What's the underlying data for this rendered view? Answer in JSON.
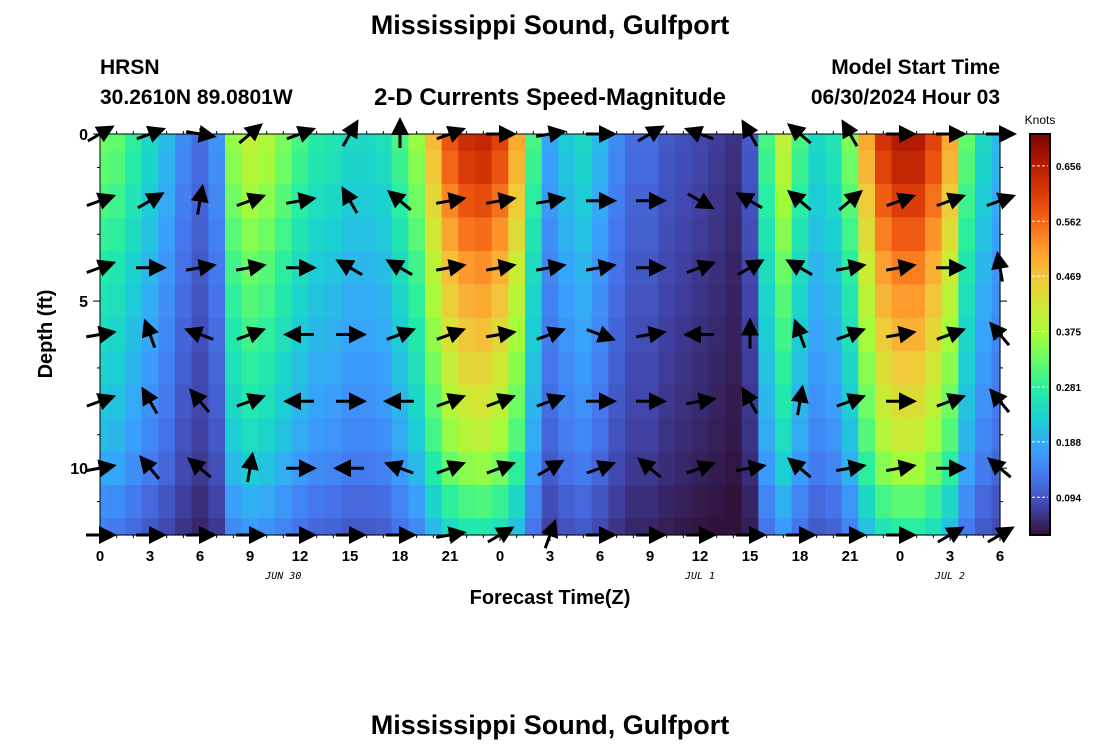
{
  "header": {
    "title": "Mississippi Sound, Gulfport",
    "title_bottom": "Mississippi Sound, Gulfport",
    "station": "HRSN",
    "coordinates": "30.2610N  89.0801W",
    "subtitle": "2-D Currents Speed-Magnitude",
    "start_label": "Model Start Time",
    "start_value": "06/30/2024 Hour 03"
  },
  "chart_data": {
    "type": "heatmap",
    "title": "2-D Currents Speed-Magnitude",
    "xlabel": "Forecast Time(Z)",
    "ylabel": "Depth (ft)",
    "x_ticks": [
      "0",
      "3",
      "6",
      "9",
      "12",
      "15",
      "18",
      "21",
      "0",
      "3",
      "6",
      "9",
      "12",
      "15",
      "18",
      "21",
      "0",
      "3",
      "6"
    ],
    "x_range_hours": [
      0,
      54
    ],
    "x_date_labels": [
      {
        "hour": 11,
        "text": "JUN 30"
      },
      {
        "hour": 36,
        "text": "JUL 1"
      },
      {
        "hour": 51,
        "text": "JUL 2"
      }
    ],
    "y_ticks": [
      "0",
      "5",
      "10"
    ],
    "y_range_ft": [
      0,
      12
    ],
    "y_inverted": true,
    "colorbar": {
      "label": "Knots",
      "ticks": [
        "0.656",
        "0.562",
        "0.469",
        "0.375",
        "0.281",
        "0.188",
        "0.094"
      ],
      "tick_values": [
        0.656,
        0.562,
        0.469,
        0.375,
        0.281,
        0.188,
        0.094
      ],
      "range": [
        0.03,
        0.71
      ],
      "colors": [
        "#30123b",
        "#4145ab",
        "#4675ed",
        "#39a2fc",
        "#1bcfd4",
        "#24eca6",
        "#61fc6c",
        "#a4fc3b",
        "#d1e834",
        "#f3c63a",
        "#fe9b2d",
        "#f36315",
        "#d93806",
        "#b11901",
        "#7a0402"
      ]
    },
    "rows_depth_ft": [
      0,
      1,
      2,
      3,
      4,
      5,
      6,
      7,
      8,
      9,
      10,
      11,
      12
    ],
    "time_hours": [
      0,
      1,
      2,
      3,
      4,
      5,
      6,
      7,
      8,
      9,
      10,
      11,
      12,
      13,
      14,
      15,
      16,
      17,
      18,
      19,
      20,
      21,
      22,
      23,
      24,
      25,
      26,
      27,
      28,
      29,
      30,
      31,
      32,
      33,
      34,
      35,
      36,
      37,
      38,
      39,
      40,
      41,
      42,
      43,
      44,
      45,
      46,
      47,
      48,
      49,
      50,
      51,
      52,
      53,
      54
    ],
    "speed_profile_knots": [
      0.33,
      0.32,
      0.28,
      0.24,
      0.2,
      0.15,
      0.12,
      0.16,
      0.36,
      0.4,
      0.38,
      0.34,
      0.3,
      0.27,
      0.26,
      0.24,
      0.24,
      0.25,
      0.3,
      0.36,
      0.48,
      0.58,
      0.63,
      0.64,
      0.6,
      0.5,
      0.3,
      0.18,
      0.22,
      0.24,
      0.2,
      0.15,
      0.12,
      0.12,
      0.1,
      0.09,
      0.08,
      0.07,
      0.06,
      0.1,
      0.3,
      0.4,
      0.3,
      0.24,
      0.26,
      0.34,
      0.5,
      0.62,
      0.66,
      0.66,
      0.6,
      0.5,
      0.32,
      0.24,
      0.2
    ],
    "depth_factor": [
      1.0,
      0.97,
      0.92,
      0.87,
      0.82,
      0.78,
      0.74,
      0.7,
      0.66,
      0.62,
      0.56,
      0.48,
      0.42
    ],
    "arrow_rows_depth_ft": [
      0,
      2,
      4,
      6,
      8,
      10,
      12
    ],
    "arrow_columns_hours": [
      0,
      3,
      6,
      9,
      12,
      15,
      18,
      21,
      24,
      27,
      30,
      33,
      36,
      39,
      42,
      45,
      48,
      51,
      54
    ],
    "arrow_directions_deg": [
      [
        30,
        20,
        -10,
        40,
        20,
        60,
        90,
        20,
        0,
        10,
        0,
        30,
        160,
        120,
        140,
        120,
        0,
        0,
        0
      ],
      [
        20,
        30,
        80,
        20,
        10,
        120,
        140,
        10,
        10,
        10,
        0,
        0,
        -30,
        150,
        140,
        40,
        20,
        20,
        20
      ],
      [
        20,
        0,
        10,
        10,
        0,
        150,
        150,
        10,
        10,
        10,
        10,
        0,
        20,
        30,
        150,
        10,
        10,
        0,
        100
      ],
      [
        10,
        110,
        160,
        20,
        180,
        0,
        20,
        20,
        10,
        20,
        -20,
        10,
        180,
        90,
        110,
        20,
        10,
        20,
        130
      ],
      [
        20,
        120,
        130,
        20,
        180,
        0,
        180,
        20,
        20,
        20,
        0,
        0,
        10,
        120,
        80,
        20,
        0,
        20,
        130
      ],
      [
        10,
        130,
        140,
        80,
        0,
        180,
        160,
        20,
        20,
        30,
        20,
        140,
        20,
        10,
        140,
        10,
        10,
        0,
        140
      ],
      [
        0,
        0,
        0,
        0,
        0,
        0,
        0,
        10,
        30,
        70,
        0,
        0,
        0,
        0,
        0,
        0,
        0,
        30,
        30
      ]
    ]
  }
}
